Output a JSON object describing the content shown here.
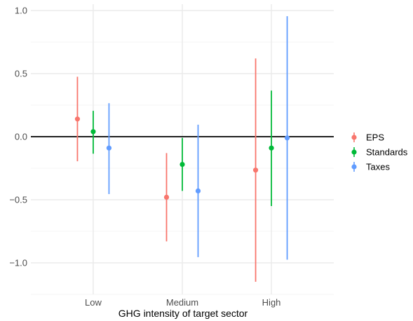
{
  "chart_data": {
    "type": "errorbar",
    "xlabel": "GHG intensity of target sector",
    "ylabel": "",
    "categories": [
      "Low",
      "Medium",
      "High"
    ],
    "ylim": [
      -1.25,
      1.05
    ],
    "y_ticks": [
      -1.0,
      -0.5,
      0.0,
      0.5,
      1.0
    ],
    "y_tick_labels": [
      "−1.0",
      "−0.5",
      "0.0",
      "0.5",
      "1.0"
    ],
    "reference_line": 0.0,
    "grid": true,
    "legend_position": "right",
    "series": [
      {
        "name": "EPS",
        "color": "#F8766D",
        "estimate": [
          0.14,
          -0.48,
          -0.265
        ],
        "lower": [
          -0.195,
          -0.83,
          -1.15
        ],
        "upper": [
          0.475,
          -0.13,
          0.62
        ]
      },
      {
        "name": "Standards",
        "color": "#00BA38",
        "estimate": [
          0.04,
          -0.22,
          -0.09
        ],
        "lower": [
          -0.135,
          -0.43,
          -0.55
        ],
        "upper": [
          0.205,
          -0.01,
          0.365
        ]
      },
      {
        "name": "Taxes",
        "color": "#619CFF",
        "estimate": [
          -0.09,
          -0.43,
          -0.01
        ],
        "lower": [
          -0.455,
          -0.955,
          -0.975
        ],
        "upper": [
          0.265,
          0.095,
          0.955
        ]
      }
    ]
  }
}
